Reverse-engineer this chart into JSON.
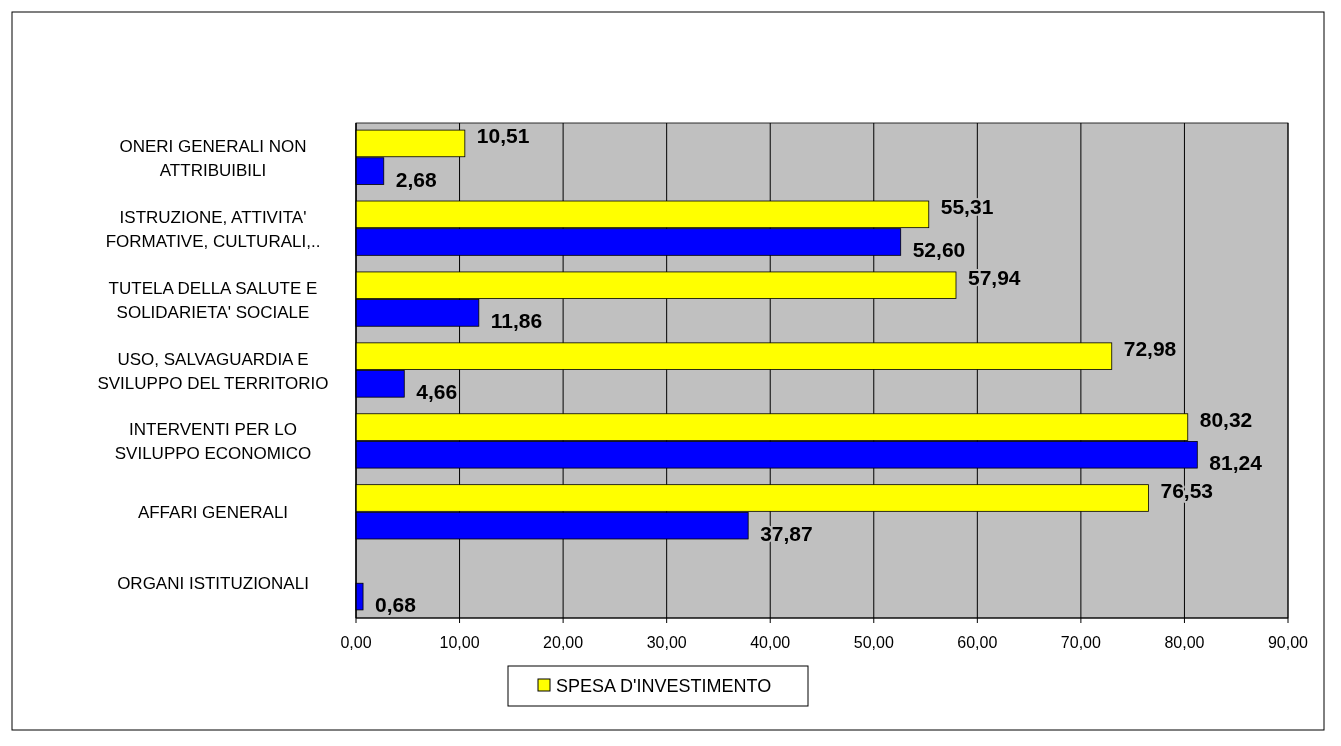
{
  "chart_data": {
    "type": "bar",
    "orientation": "horizontal",
    "categories": [
      "ONERI GENERALI NON\nATTRIBUIBILI",
      "ISTRUZIONE, ATTIVITA'\nFORMATIVE, CULTURALI,..",
      "TUTELA DELLA SALUTE E\nSOLIDARIETA' SOCIALE",
      "USO, SALVAGUARDIA E\nSVILUPPO DEL TERRITORIO",
      "INTERVENTI PER LO\nSVILUPPO ECONOMICO",
      "AFFARI GENERALI",
      "ORGANI ISTITUZIONALI"
    ],
    "series": [
      {
        "name": "SPESA D'INVESTIMENTO",
        "color": "#ffff00",
        "values": [
          10.51,
          55.31,
          57.94,
          72.98,
          80.32,
          76.53,
          null
        ],
        "value_labels": [
          "10,51",
          "55,31",
          "57,94",
          "72,98",
          "80,32",
          "76,53",
          null
        ]
      },
      {
        "color": "#0000ff",
        "values": [
          2.68,
          52.6,
          11.86,
          4.66,
          81.24,
          37.87,
          0.68
        ],
        "value_labels": [
          "2,68",
          "52,60",
          "11,86",
          "4,66",
          "81,24",
          "37,87",
          "0,68"
        ]
      }
    ],
    "xlim": [
      0,
      90
    ],
    "xticks": [
      {
        "value": 0,
        "label": "0,00"
      },
      {
        "value": 10,
        "label": "10,00"
      },
      {
        "value": 20,
        "label": "20,00"
      },
      {
        "value": 30,
        "label": "30,00"
      },
      {
        "value": 40,
        "label": "40,00"
      },
      {
        "value": 50,
        "label": "50,00"
      },
      {
        "value": 60,
        "label": "60,00"
      },
      {
        "value": 70,
        "label": "70,00"
      },
      {
        "value": 80,
        "label": "80,00"
      },
      {
        "value": 90,
        "label": "90,00"
      }
    ],
    "grid": "x",
    "legend": "bottom"
  }
}
